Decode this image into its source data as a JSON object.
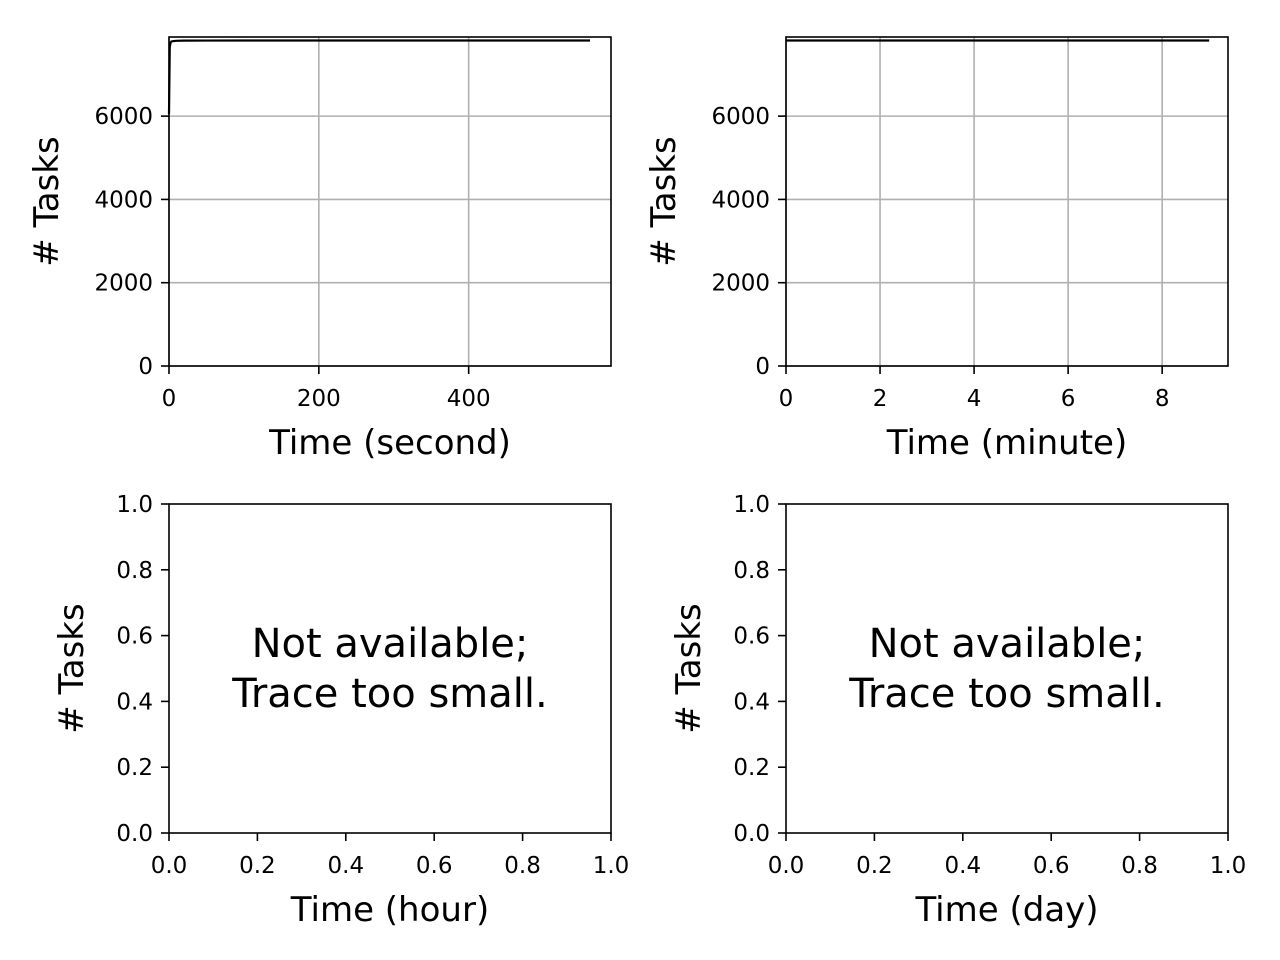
{
  "chart_data": [
    {
      "type": "line",
      "xlabel": "Time (second)",
      "ylabel": "# Tasks",
      "xlim": [
        0,
        590
      ],
      "ylim": [
        0,
        7900
      ],
      "xticks": [
        0,
        200,
        400
      ],
      "yticks": [
        0,
        2000,
        4000,
        6000
      ],
      "grid": true,
      "series": [
        {
          "color": "#000000",
          "x": [
            0,
            1,
            2,
            3,
            5,
            10,
            20,
            50,
            100,
            200,
            300,
            400,
            500,
            562
          ],
          "y": [
            6050,
            7650,
            7760,
            7790,
            7800,
            7808,
            7812,
            7815,
            7816,
            7816,
            7816,
            7816,
            7816,
            7816
          ]
        }
      ]
    },
    {
      "type": "line",
      "xlabel": "Time (minute)",
      "ylabel": "# Tasks",
      "xlim": [
        0,
        9.4
      ],
      "ylim": [
        0,
        7900
      ],
      "xticks": [
        0,
        2,
        4,
        6,
        8
      ],
      "yticks": [
        0,
        2000,
        4000,
        6000
      ],
      "grid": true,
      "series": [
        {
          "color": "#000000",
          "x": [
            0,
            1,
            2,
            3,
            4,
            5,
            6,
            7,
            8,
            9
          ],
          "y": [
            7816,
            7816,
            7816,
            7816,
            7816,
            7816,
            7816,
            7816,
            7816,
            7816
          ]
        }
      ]
    },
    {
      "type": "line",
      "xlabel": "Time (hour)",
      "ylabel": "# Tasks",
      "xlim": [
        0,
        1
      ],
      "ylim": [
        0,
        1
      ],
      "xticks": [
        "0.0",
        "0.2",
        "0.4",
        "0.6",
        "0.8",
        "1.0"
      ],
      "yticks": [
        "0.0",
        "0.2",
        "0.4",
        "0.6",
        "0.8",
        "1.0"
      ],
      "grid": false,
      "annotation": [
        "Not available;",
        "Trace too small."
      ],
      "series": []
    },
    {
      "type": "line",
      "xlabel": "Time (day)",
      "ylabel": "# Tasks",
      "xlim": [
        0,
        1
      ],
      "ylim": [
        0,
        1
      ],
      "xticks": [
        "0.0",
        "0.2",
        "0.4",
        "0.6",
        "0.8",
        "1.0"
      ],
      "yticks": [
        "0.0",
        "0.2",
        "0.4",
        "0.6",
        "0.8",
        "1.0"
      ],
      "grid": false,
      "annotation": [
        "Not available;",
        "Trace too small."
      ],
      "series": []
    }
  ]
}
